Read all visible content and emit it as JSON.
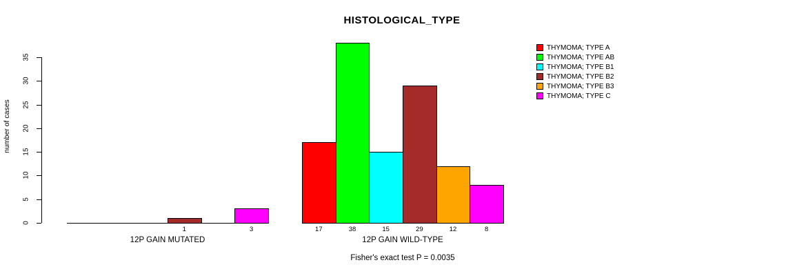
{
  "chart_data": {
    "type": "bar",
    "title": "HISTOLOGICAL_TYPE",
    "ylabel": "number of cases",
    "xlabel": "",
    "ylim": [
      0,
      35
    ],
    "yticks": [
      0,
      5,
      10,
      15,
      20,
      25,
      30,
      35
    ],
    "grid": false,
    "legend_position": "right",
    "annotation": "Fisher's exact test P = 0.0035",
    "bar_label_rule": "value shown under each bar only when value > 0",
    "series": [
      {
        "name": "THYMOMA; TYPE A",
        "color": "#FF0000"
      },
      {
        "name": "THYMOMA; TYPE AB",
        "color": "#00FF00"
      },
      {
        "name": "THYMOMA; TYPE B1",
        "color": "#00FFFF"
      },
      {
        "name": "THYMOMA; TYPE B2",
        "color": "#A52A2A"
      },
      {
        "name": "THYMOMA; TYPE B3",
        "color": "#FFA500"
      },
      {
        "name": "THYMOMA; TYPE C",
        "color": "#FF00FF"
      }
    ],
    "groups": [
      {
        "label": "12P GAIN MUTATED",
        "values": [
          0,
          0,
          0,
          1,
          0,
          3
        ]
      },
      {
        "label": "12P GAIN WILD-TYPE",
        "values": [
          17,
          38,
          15,
          29,
          12,
          8
        ]
      }
    ]
  }
}
